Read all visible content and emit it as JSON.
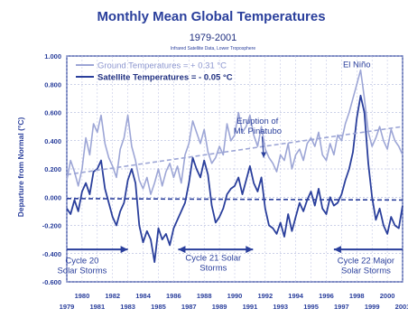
{
  "chart_data": {
    "type": "line",
    "title": "Monthly Mean Global Temperatures",
    "subtitle": "1979-2001",
    "subsubtitle": "Infrared Satellite Data, Lower Troposphere",
    "ylabel": "Departure from Normal (°C)",
    "xlabel": "",
    "ylim": [
      -0.6,
      1.0
    ],
    "xlim": [
      1979,
      2001
    ],
    "grid": true,
    "yticks": [
      1.0,
      0.8,
      0.6,
      0.4,
      0.2,
      0.0,
      -0.2,
      -0.4,
      -0.6
    ],
    "ytick_labels": [
      "1.000",
      "0.800",
      "0.600",
      "0.400",
      "0.200",
      "0.000",
      "-0.200",
      "-0.400",
      "-0.600"
    ],
    "xticks_top": [
      1980,
      1982,
      1984,
      1986,
      1988,
      1990,
      1992,
      1994,
      1996,
      1998,
      2000
    ],
    "xticks_top_labels": [
      "1980",
      "1982",
      "1984",
      "1986",
      "1988",
      "1990",
      "1992",
      "1994",
      "1996",
      "1998",
      "2000"
    ],
    "xticks_bottom": [
      1979,
      1981,
      1983,
      1985,
      1987,
      1989,
      1991,
      1993,
      1995,
      1997,
      1999,
      2001
    ],
    "xticks_bottom_labels": [
      "1979",
      "1981",
      "1983",
      "1985",
      "1987",
      "1989",
      "1991",
      "1993",
      "1995",
      "1997",
      "1999",
      "2001"
    ],
    "legend_position": "top-left",
    "series": [
      {
        "name": "Ground Temperatures = + 0.31 °C",
        "color": "#9da6d6",
        "x": [
          1979.0,
          1979.25,
          1979.5,
          1979.75,
          1980.0,
          1980.25,
          1980.5,
          1980.75,
          1981.0,
          1981.25,
          1981.5,
          1981.75,
          1982.0,
          1982.25,
          1982.5,
          1982.75,
          1983.0,
          1983.25,
          1983.5,
          1983.75,
          1984.0,
          1984.25,
          1984.5,
          1984.75,
          1985.0,
          1985.25,
          1985.5,
          1985.75,
          1986.0,
          1986.25,
          1986.5,
          1986.75,
          1987.0,
          1987.25,
          1987.5,
          1987.75,
          1988.0,
          1988.25,
          1988.5,
          1988.75,
          1989.0,
          1989.25,
          1989.5,
          1989.75,
          1990.0,
          1990.25,
          1990.5,
          1990.75,
          1991.0,
          1991.25,
          1991.5,
          1991.75,
          1992.0,
          1992.25,
          1992.5,
          1992.75,
          1993.0,
          1993.25,
          1993.5,
          1993.75,
          1994.0,
          1994.25,
          1994.5,
          1994.75,
          1995.0,
          1995.25,
          1995.5,
          1995.75,
          1996.0,
          1996.25,
          1996.5,
          1996.75,
          1997.0,
          1997.25,
          1997.5,
          1997.75,
          1998.0,
          1998.25,
          1998.5,
          1998.75,
          1999.0,
          1999.25,
          1999.5,
          1999.75,
          2000.0,
          2000.25,
          2000.5,
          2000.75,
          2001.0
        ],
        "values": [
          0.12,
          0.26,
          0.18,
          0.08,
          0.2,
          0.42,
          0.3,
          0.52,
          0.46,
          0.58,
          0.38,
          0.28,
          0.22,
          0.14,
          0.34,
          0.42,
          0.58,
          0.36,
          0.26,
          0.12,
          0.06,
          0.14,
          0.02,
          0.1,
          0.2,
          0.08,
          0.18,
          0.24,
          0.14,
          0.22,
          0.1,
          0.3,
          0.38,
          0.54,
          0.46,
          0.38,
          0.48,
          0.32,
          0.24,
          0.28,
          0.36,
          0.3,
          0.52,
          0.4,
          0.44,
          0.6,
          0.46,
          0.5,
          0.58,
          0.44,
          0.36,
          0.5,
          0.34,
          0.28,
          0.24,
          0.18,
          0.3,
          0.26,
          0.38,
          0.2,
          0.3,
          0.34,
          0.26,
          0.38,
          0.42,
          0.36,
          0.46,
          0.3,
          0.26,
          0.38,
          0.3,
          0.44,
          0.4,
          0.52,
          0.6,
          0.7,
          0.8,
          0.9,
          0.7,
          0.46,
          0.36,
          0.42,
          0.5,
          0.4,
          0.34,
          0.48,
          0.4,
          0.36,
          0.3
        ]
      },
      {
        "name": "Satellite Temperatures = - 0.05 °C",
        "color": "#2a3f9c",
        "x": [
          1979.0,
          1979.25,
          1979.5,
          1979.75,
          1980.0,
          1980.25,
          1980.5,
          1980.75,
          1981.0,
          1981.25,
          1981.5,
          1981.75,
          1982.0,
          1982.25,
          1982.5,
          1982.75,
          1983.0,
          1983.25,
          1983.5,
          1983.75,
          1984.0,
          1984.25,
          1984.5,
          1984.75,
          1985.0,
          1985.25,
          1985.5,
          1985.75,
          1986.0,
          1986.25,
          1986.5,
          1986.75,
          1987.0,
          1987.25,
          1987.5,
          1987.75,
          1988.0,
          1988.25,
          1988.5,
          1988.75,
          1989.0,
          1989.25,
          1989.5,
          1989.75,
          1990.0,
          1990.25,
          1990.5,
          1990.75,
          1991.0,
          1991.25,
          1991.5,
          1991.75,
          1992.0,
          1992.25,
          1992.5,
          1992.75,
          1993.0,
          1993.25,
          1993.5,
          1993.75,
          1994.0,
          1994.25,
          1994.5,
          1994.75,
          1995.0,
          1995.25,
          1995.5,
          1995.75,
          1996.0,
          1996.25,
          1996.5,
          1996.75,
          1997.0,
          1997.25,
          1997.5,
          1997.75,
          1998.0,
          1998.25,
          1998.5,
          1998.75,
          1999.0,
          1999.25,
          1999.5,
          1999.75,
          2000.0,
          2000.25,
          2000.5,
          2000.75,
          2001.0
        ],
        "values": [
          -0.08,
          -0.12,
          -0.02,
          -0.1,
          0.04,
          0.1,
          0.02,
          0.18,
          0.2,
          0.26,
          0.06,
          -0.04,
          -0.14,
          -0.2,
          -0.1,
          -0.04,
          0.12,
          0.2,
          0.1,
          -0.2,
          -0.32,
          -0.24,
          -0.3,
          -0.46,
          -0.22,
          -0.3,
          -0.26,
          -0.34,
          -0.22,
          -0.16,
          -0.1,
          -0.04,
          0.1,
          0.28,
          0.2,
          0.14,
          0.26,
          0.16,
          -0.06,
          -0.18,
          -0.14,
          -0.08,
          0.02,
          0.06,
          0.08,
          0.14,
          0.02,
          0.12,
          0.22,
          0.1,
          0.04,
          0.14,
          -0.08,
          -0.2,
          -0.22,
          -0.26,
          -0.18,
          -0.28,
          -0.12,
          -0.24,
          -0.14,
          -0.04,
          -0.1,
          -0.02,
          0.04,
          -0.06,
          0.06,
          -0.08,
          -0.12,
          0.0,
          -0.06,
          -0.04,
          0.02,
          0.12,
          0.2,
          0.32,
          0.56,
          0.72,
          0.6,
          0.24,
          0.0,
          -0.16,
          -0.08,
          -0.2,
          -0.26,
          -0.14,
          -0.2,
          -0.22,
          -0.06
        ]
      },
      {
        "name": "",
        "color": "#9da6d6",
        "style": "trend",
        "x": [
          1979,
          2001
        ],
        "values": [
          0.16,
          0.5
        ]
      },
      {
        "name": "",
        "color": "#2a3f9c",
        "style": "trend",
        "x": [
          1979,
          2001
        ],
        "values": [
          -0.01,
          -0.02
        ]
      }
    ],
    "annotations": [
      {
        "text_lines": [
          "Eruption of",
          "Mt. Pinatubo"
        ],
        "x": 1991.5,
        "y": 0.52
      },
      {
        "text_lines": [
          "El Niño"
        ],
        "x": 1998.0,
        "y": 0.92
      },
      {
        "text_lines": [
          "Cycle 20",
          "Solar Storms"
        ],
        "x": 1980.0,
        "y": -0.47
      },
      {
        "text_lines": [
          "Cycle 21 Solar",
          "Storms"
        ],
        "x": 1988.6,
        "y": -0.45
      },
      {
        "text_lines": [
          "Cycle 22 Major",
          "Solar Storms"
        ],
        "x": 1998.6,
        "y": -0.47
      }
    ],
    "arrows": [
      {
        "name": "cycle-20-arrow",
        "x_from": 1979.0,
        "x_to": 1983.0,
        "y": -0.37,
        "heads": "right"
      },
      {
        "name": "cycle-21-arrow",
        "x_from": 1986.3,
        "x_to": 1991.2,
        "y": -0.37,
        "heads": "both"
      },
      {
        "name": "cycle-22-arrow",
        "x_from": 1996.5,
        "x_to": 2001.0,
        "y": -0.37,
        "heads": "left"
      }
    ],
    "pointer_arrows": [
      {
        "name": "pinatubo-arrow",
        "x_from": 1991.8,
        "y_from": 0.43,
        "x_to": 1991.9,
        "y_to": 0.28
      }
    ]
  }
}
